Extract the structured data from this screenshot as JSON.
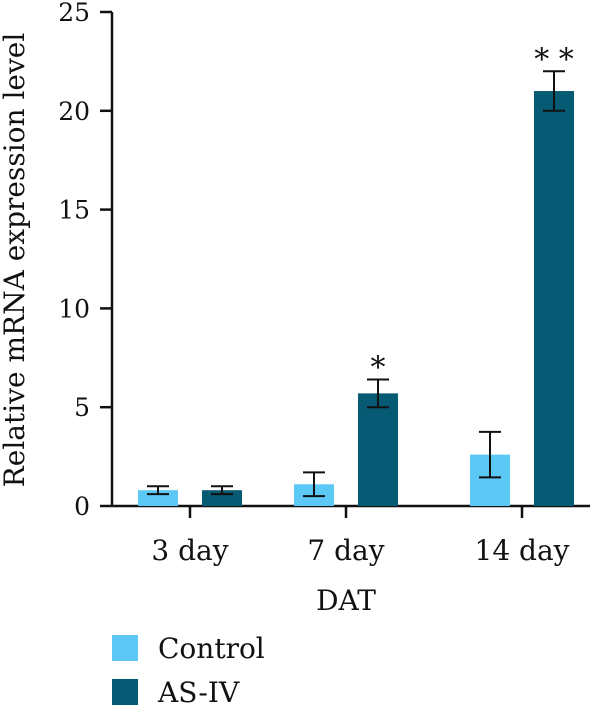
{
  "chart_data": {
    "type": "bar",
    "title": "",
    "xlabel": "DAT",
    "ylabel": "Relative mRNA expression level",
    "ylim": [
      0,
      25
    ],
    "yticks": [
      0,
      5,
      10,
      15,
      20,
      25
    ],
    "categories": [
      "3 day",
      "7 day",
      "14 day"
    ],
    "series": [
      {
        "name": "Control",
        "color": "#5bc8f5",
        "values": [
          0.8,
          1.1,
          2.6
        ],
        "errors": [
          0.2,
          0.6,
          1.15
        ]
      },
      {
        "name": "AS-IV",
        "color": "#075a73",
        "values": [
          0.8,
          5.7,
          21.0
        ],
        "errors": [
          0.2,
          0.7,
          1.0
        ]
      }
    ],
    "annotations": [
      {
        "category": "7 day",
        "series": "AS-IV",
        "text": "*"
      },
      {
        "category": "14 day",
        "series": "AS-IV",
        "text": "**"
      }
    ],
    "legend_position": "bottom-left",
    "grid": false
  }
}
